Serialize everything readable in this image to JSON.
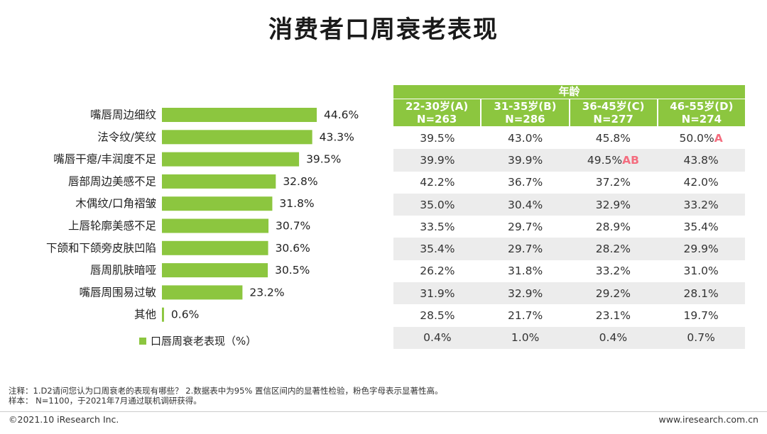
{
  "title": "消费者口周衰老表现",
  "chart_data": {
    "type": "bar",
    "orientation": "horizontal",
    "categories": [
      "嘴唇周边细纹",
      "法令纹/笑纹",
      "嘴唇干瘪/丰润度不足",
      "唇部周边美感不足",
      "木偶纹/口角褶皱",
      "上唇轮廓美感不足",
      "下颌和下颌旁皮肤凹陷",
      "唇周肌肤暗哑",
      "嘴唇周围易过敏",
      "其他"
    ],
    "values": [
      44.6,
      43.3,
      39.5,
      32.8,
      31.8,
      30.7,
      30.6,
      30.5,
      23.2,
      0.6
    ],
    "value_labels": [
      "44.6%",
      "43.3%",
      "39.5%",
      "32.8%",
      "31.8%",
      "30.7%",
      "30.6%",
      "30.5%",
      "23.2%",
      "0.6%"
    ],
    "series": [
      {
        "name": "口唇周衰老表现（%）",
        "values": [
          44.6,
          43.3,
          39.5,
          32.8,
          31.8,
          30.7,
          30.6,
          30.5,
          23.2,
          0.6
        ]
      }
    ],
    "color": "#8cc63f",
    "xlim": [
      0,
      50
    ]
  },
  "legend": {
    "label": "口唇周衰老表现（%）"
  },
  "table": {
    "group_header": "年龄",
    "columns": [
      {
        "line1": "22-30岁(A)",
        "line2": "N=263"
      },
      {
        "line1": "31-35岁(B)",
        "line2": "N=286"
      },
      {
        "line1": "36-45岁(C)",
        "line2": "N=277"
      },
      {
        "line1": "46-55岁(D)",
        "line2": "N=274"
      }
    ],
    "rows": [
      [
        {
          "v": "39.5%"
        },
        {
          "v": "43.0%"
        },
        {
          "v": "45.8%"
        },
        {
          "v": "50.0%",
          "sig": "A"
        }
      ],
      [
        {
          "v": "39.9%"
        },
        {
          "v": "39.9%"
        },
        {
          "v": "49.5%",
          "sig": "AB"
        },
        {
          "v": "43.8%"
        }
      ],
      [
        {
          "v": "42.2%"
        },
        {
          "v": "36.7%"
        },
        {
          "v": "37.2%"
        },
        {
          "v": "42.0%"
        }
      ],
      [
        {
          "v": "35.0%"
        },
        {
          "v": "30.4%"
        },
        {
          "v": "32.9%"
        },
        {
          "v": "33.2%"
        }
      ],
      [
        {
          "v": "33.5%"
        },
        {
          "v": "29.7%"
        },
        {
          "v": "28.9%"
        },
        {
          "v": "35.4%"
        }
      ],
      [
        {
          "v": "35.4%"
        },
        {
          "v": "29.7%"
        },
        {
          "v": "28.2%"
        },
        {
          "v": "29.9%"
        }
      ],
      [
        {
          "v": "26.2%"
        },
        {
          "v": "31.8%"
        },
        {
          "v": "33.2%"
        },
        {
          "v": "31.0%"
        }
      ],
      [
        {
          "v": "31.9%"
        },
        {
          "v": "32.9%"
        },
        {
          "v": "29.2%"
        },
        {
          "v": "28.1%"
        }
      ],
      [
        {
          "v": "28.5%"
        },
        {
          "v": "21.7%"
        },
        {
          "v": "23.1%"
        },
        {
          "v": "19.7%"
        }
      ],
      [
        {
          "v": "0.4%"
        },
        {
          "v": "1.0%"
        },
        {
          "v": "0.4%"
        },
        {
          "v": "0.7%"
        }
      ]
    ]
  },
  "footnote": {
    "line1": "注释：1.D2请问您认为口周衰老的表现有哪些？ 2.数据表中为95% 置信区间内的显著性检验，粉色字母表示显著性高。",
    "line2": "样本： N=1100，于2021年7月通过联机调研获得。"
  },
  "footer": {
    "copyright": "©2021.10 iResearch Inc.",
    "website": "www.iresearch.com.cn"
  }
}
